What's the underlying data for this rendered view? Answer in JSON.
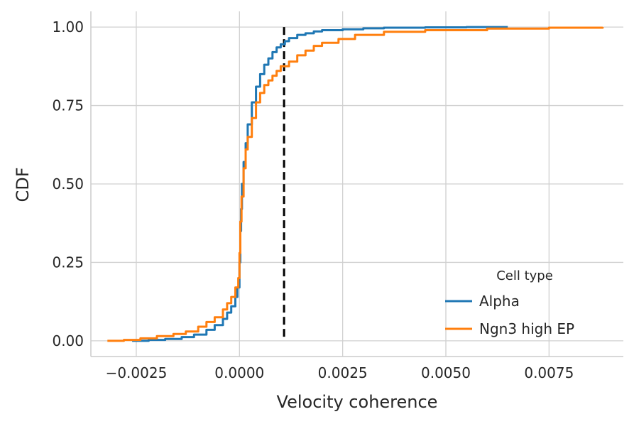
{
  "chart_data": {
    "type": "line",
    "xlabel": "Velocity coherence",
    "ylabel": "CDF",
    "xlim": [
      -0.0036,
      0.0093
    ],
    "ylim": [
      -0.05,
      1.05
    ],
    "x_ticks": [
      -0.0025,
      0.0,
      0.0025,
      0.005,
      0.0075
    ],
    "x_tick_labels": [
      "−0.0025",
      "0.0000",
      "0.0025",
      "0.0050",
      "0.0075"
    ],
    "y_ticks": [
      0.0,
      0.25,
      0.5,
      0.75,
      1.0
    ],
    "y_tick_labels": [
      "0.00",
      "0.25",
      "0.50",
      "0.75",
      "1.00"
    ],
    "grid": true,
    "legend": {
      "title": "Cell type",
      "placement": "lower-right"
    },
    "reference_line": {
      "orientation": "vertical",
      "x": 0.00108,
      "style": "dashed",
      "color": "#000000"
    },
    "series": [
      {
        "name": "Alpha",
        "color": "#1f77b4",
        "x": [
          -0.0026,
          -0.0022,
          -0.0018,
          -0.0014,
          -0.0011,
          -0.0008,
          -0.0006,
          -0.0004,
          -0.0003,
          -0.0002,
          -0.0001,
          -5e-05,
          0.0,
          2e-05,
          4e-05,
          6e-05,
          0.0001,
          0.00015,
          0.0002,
          0.0003,
          0.0004,
          0.0005,
          0.0006,
          0.0007,
          0.0008,
          0.0009,
          0.001,
          0.0011,
          0.0012,
          0.0014,
          0.0016,
          0.0018,
          0.002,
          0.0025,
          0.003,
          0.0035,
          0.0045,
          0.0055,
          0.0065
        ],
        "y": [
          0.0,
          0.003,
          0.006,
          0.012,
          0.02,
          0.035,
          0.05,
          0.07,
          0.09,
          0.11,
          0.14,
          0.17,
          0.25,
          0.35,
          0.42,
          0.5,
          0.57,
          0.63,
          0.69,
          0.76,
          0.81,
          0.85,
          0.88,
          0.9,
          0.92,
          0.935,
          0.945,
          0.955,
          0.965,
          0.975,
          0.98,
          0.986,
          0.99,
          0.993,
          0.996,
          0.998,
          0.999,
          1.0,
          1.0
        ]
      },
      {
        "name": "Ngn3 high EP",
        "color": "#ff7f0e",
        "x": [
          -0.0032,
          -0.0028,
          -0.0024,
          -0.002,
          -0.0016,
          -0.0013,
          -0.001,
          -0.0008,
          -0.0006,
          -0.0004,
          -0.0003,
          -0.0002,
          -0.0001,
          -3e-05,
          0.0,
          2e-05,
          5e-05,
          0.0001,
          0.00015,
          0.0002,
          0.0003,
          0.0004,
          0.0005,
          0.0006,
          0.0007,
          0.0008,
          0.0009,
          0.001,
          0.0012,
          0.0014,
          0.0016,
          0.0018,
          0.002,
          0.0024,
          0.0028,
          0.0035,
          0.0045,
          0.006,
          0.0075,
          0.0088
        ],
        "y": [
          0.0,
          0.003,
          0.008,
          0.015,
          0.022,
          0.03,
          0.045,
          0.06,
          0.075,
          0.1,
          0.12,
          0.14,
          0.17,
          0.2,
          0.28,
          0.38,
          0.46,
          0.55,
          0.61,
          0.65,
          0.71,
          0.76,
          0.79,
          0.815,
          0.83,
          0.845,
          0.86,
          0.875,
          0.89,
          0.91,
          0.925,
          0.94,
          0.95,
          0.962,
          0.975,
          0.985,
          0.99,
          0.995,
          0.998,
          1.0
        ]
      }
    ]
  }
}
